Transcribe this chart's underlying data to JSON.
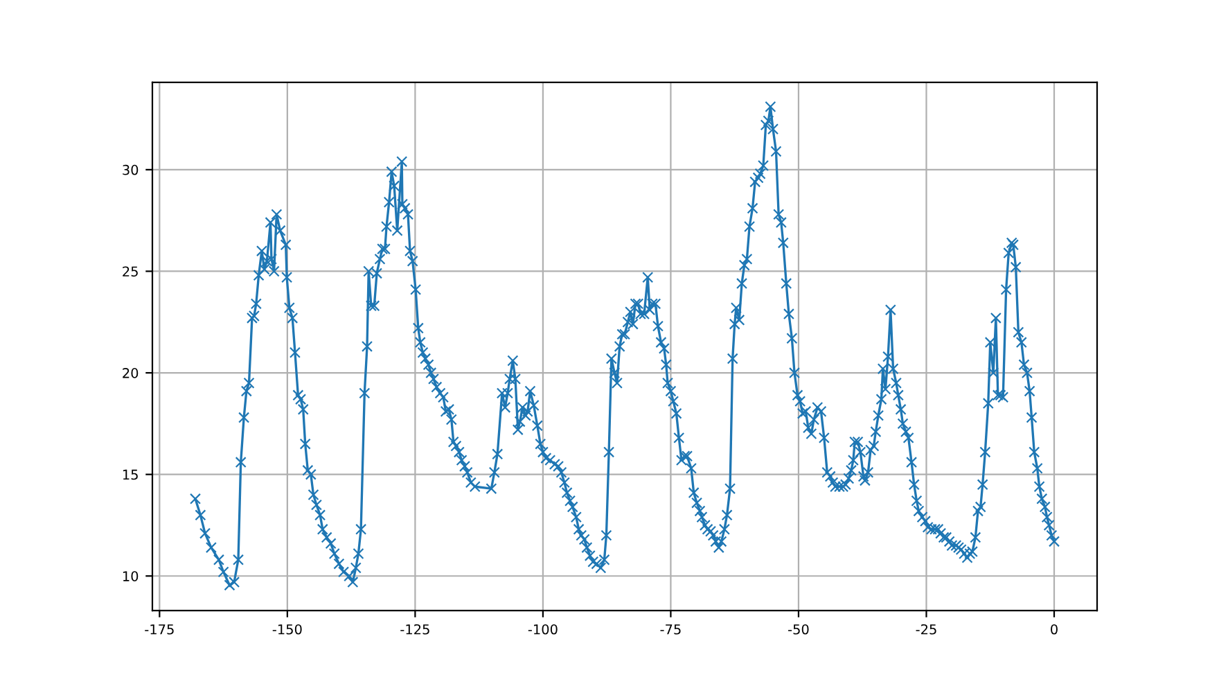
{
  "chart_data": {
    "type": "line",
    "x": [
      -168,
      -167.0,
      -166.1,
      -164.9,
      -163.4,
      -162.5,
      -161.3,
      -160.4,
      -159.6,
      -159.1,
      -158.5,
      -158.0,
      -157.5,
      -156.9,
      -156.5,
      -156.1,
      -155.6,
      -155.0,
      -154.5,
      -154.0,
      -153.3,
      -153.1,
      -152.6,
      -152.1,
      -151.4,
      -150.3,
      -150.1,
      -149.6,
      -149.0,
      -148.5,
      -147.9,
      -147.4,
      -146.9,
      -146.5,
      -146.0,
      -145.4,
      -144.9,
      -144.3,
      -143.6,
      -143.1,
      -142.3,
      -141.5,
      -140.8,
      -139.9,
      -139.0,
      -137.9,
      -137.2,
      -136.6,
      -136.1,
      -135.6,
      -134.9,
      -134.4,
      -134.1,
      -133.6,
      -133.0,
      -132.5,
      -131.9,
      -131.4,
      -130.9,
      -130.6,
      -130.1,
      -129.6,
      -129.1,
      -128.5,
      -127.6,
      -127.5,
      -127.0,
      -126.4,
      -126.0,
      -125.5,
      -124.9,
      -124.4,
      -124.0,
      -123.5,
      -123.0,
      -122.4,
      -121.9,
      -121.4,
      -120.8,
      -120.1,
      -119.5,
      -119.0,
      -118.4,
      -117.9,
      -117.5,
      -117.0,
      -116.4,
      -115.9,
      -115.3,
      -114.8,
      -114.1,
      -113.3,
      -110.1,
      -109.5,
      -108.9,
      -108.0,
      -107.4,
      -106.9,
      -106.5,
      -105.9,
      -105.4,
      -104.9,
      -104.5,
      -104.0,
      -103.4,
      -103.0,
      -102.5,
      -101.8,
      -101.1,
      -100.5,
      -100.0,
      -99.4,
      -98.6,
      -97.7,
      -97.0,
      -96.4,
      -95.8,
      -95.3,
      -94.7,
      -94.2,
      -93.5,
      -93.0,
      -92.5,
      -91.9,
      -91.4,
      -90.8,
      -90.2,
      -89.5,
      -88.7,
      -88.0,
      -87.6,
      -87.1,
      -86.6,
      -86.0,
      -85.5,
      -85.0,
      -84.5,
      -84.0,
      -83.4,
      -82.9,
      -82.4,
      -81.9,
      -81.4,
      -80.9,
      -80.2,
      -79.5,
      -79.1,
      -78.6,
      -78.0,
      -77.5,
      -76.9,
      -76.3,
      -75.9,
      -75.6,
      -75.0,
      -74.5,
      -73.9,
      -73.4,
      -72.9,
      -72.3,
      -71.8,
      -71.0,
      -70.5,
      -69.9,
      -69.3,
      -68.9,
      -68.3,
      -67.8,
      -67.2,
      -66.7,
      -66.2,
      -65.6,
      -65.1,
      -64.5,
      -64.0,
      -63.4,
      -62.9,
      -62.5,
      -62.2,
      -61.6,
      -61.1,
      -60.6,
      -60.1,
      -59.6,
      -59.0,
      -58.5,
      -57.9,
      -57.5,
      -56.9,
      -56.4,
      -55.9,
      -55.5,
      -55.0,
      -54.4,
      -53.9,
      -53.4,
      -53.0,
      -52.4,
      -51.9,
      -51.3,
      -50.8,
      -50.2,
      -49.7,
      -49.2,
      -48.6,
      -48.1,
      -47.5,
      -47.0,
      -46.3,
      -45.6,
      -45.0,
      -44.4,
      -43.8,
      -43.3,
      -42.8,
      -42.0,
      -41.3,
      -40.8,
      -40.2,
      -39.7,
      -39.3,
      -39.0,
      -38.4,
      -37.9,
      -37.3,
      -37.0,
      -36.4,
      -35.9,
      -35.3,
      -34.9,
      -34.4,
      -33.8,
      -33.5,
      -33.0,
      -32.5,
      -32.0,
      -31.5,
      -30.9,
      -30.5,
      -30.0,
      -29.6,
      -29.0,
      -28.5,
      -27.9,
      -27.4,
      -26.9,
      -26.5,
      -25.8,
      -25.2,
      -24.7,
      -24.0,
      -23.3,
      -22.7,
      -22.2,
      -21.6,
      -21.1,
      -20.5,
      -20.0,
      -19.2,
      -18.7,
      -18.2,
      -17.6,
      -17.0,
      -16.5,
      -16.0,
      -15.4,
      -14.9,
      -14.4,
      -14.0,
      -13.5,
      -12.9,
      -12.5,
      -11.9,
      -11.4,
      -11.0,
      -10.5,
      -10.0,
      -9.4,
      -8.9,
      -8.3,
      -8.0,
      -7.5,
      -7.0,
      -6.4,
      -5.9,
      -5.3,
      -4.8,
      -4.4,
      -3.9,
      -3.3,
      -2.9,
      -2.4,
      -1.8,
      -1.4,
      -1.0,
      -0.5,
      0
    ],
    "series": [
      {
        "color": "#1f77b4",
        "values": [
          13.8,
          13.0,
          12.1,
          11.4,
          10.8,
          10.2,
          9.55,
          9.7,
          10.8,
          15.6,
          17.8,
          19.1,
          19.5,
          22.7,
          22.8,
          23.4,
          24.8,
          26.0,
          25.1,
          25.5,
          27.4,
          25.6,
          25.0,
          27.8,
          27.0,
          26.3,
          24.7,
          23.2,
          22.7,
          21.0,
          18.9,
          18.7,
          18.2,
          16.5,
          15.2,
          15.0,
          14.0,
          13.5,
          13.0,
          12.3,
          11.9,
          11.6,
          11.1,
          10.6,
          10.2,
          10.0,
          9.7,
          10.4,
          11.1,
          12.3,
          19.0,
          21.3,
          25.0,
          23.3,
          23.3,
          24.9,
          25.6,
          26.1,
          26.1,
          27.2,
          28.4,
          29.9,
          29.2,
          27.0,
          30.4,
          28.3,
          28.1,
          27.8,
          26.0,
          25.5,
          24.1,
          22.2,
          21.5,
          21.0,
          20.7,
          20.4,
          20.0,
          19.7,
          19.3,
          19.0,
          18.8,
          18.1,
          18.2,
          17.7,
          16.6,
          16.4,
          16.1,
          15.7,
          15.4,
          15.1,
          14.6,
          14.4,
          14.3,
          15.1,
          16.0,
          19.0,
          18.3,
          19.0,
          19.7,
          20.6,
          19.7,
          17.2,
          17.6,
          18.3,
          17.9,
          18.1,
          19.1,
          18.4,
          17.4,
          16.5,
          16.1,
          15.8,
          15.7,
          15.5,
          15.4,
          15.1,
          14.6,
          14.1,
          13.7,
          13.4,
          12.9,
          12.3,
          12.0,
          11.8,
          11.4,
          11.0,
          10.7,
          10.6,
          10.4,
          10.8,
          12.0,
          16.1,
          20.7,
          20.0,
          19.5,
          21.3,
          21.9,
          21.9,
          22.5,
          23.0,
          22.4,
          23.4,
          23.4,
          22.9,
          22.9,
          24.7,
          23.1,
          23.4,
          23.4,
          22.3,
          21.5,
          21.2,
          20.4,
          19.5,
          19.1,
          18.6,
          18.0,
          16.8,
          15.7,
          15.9,
          15.9,
          15.3,
          14.1,
          13.6,
          13.2,
          12.9,
          12.5,
          12.3,
          12.2,
          12.0,
          11.7,
          11.4,
          11.7,
          12.3,
          13.0,
          14.3,
          20.7,
          22.4,
          23.2,
          22.6,
          24.4,
          25.3,
          25.6,
          27.2,
          28.1,
          29.4,
          29.6,
          29.8,
          30.2,
          32.2,
          32.4,
          33.1,
          32.0,
          30.9,
          27.8,
          27.4,
          26.4,
          24.4,
          22.9,
          21.7,
          20.0,
          18.9,
          18.6,
          18.0,
          18.1,
          17.3,
          17.0,
          17.7,
          18.3,
          18.1,
          16.8,
          15.1,
          14.9,
          14.6,
          14.4,
          14.4,
          14.4,
          14.5,
          14.8,
          15.2,
          15.7,
          16.6,
          16.6,
          16.1,
          14.9,
          14.7,
          15.1,
          16.2,
          16.4,
          17.1,
          17.9,
          18.7,
          20.2,
          19.2,
          20.8,
          23.1,
          20.2,
          19.5,
          18.9,
          18.2,
          17.5,
          17.1,
          16.8,
          15.6,
          14.5,
          13.7,
          13.2,
          12.9,
          12.7,
          12.4,
          12.3,
          12.3,
          12.3,
          12.1,
          11.9,
          11.9,
          11.7,
          11.5,
          11.5,
          11.4,
          11.3,
          11.1,
          10.9,
          11.1,
          11.2,
          11.9,
          13.2,
          13.4,
          14.5,
          16.1,
          18.5,
          21.5,
          20.0,
          22.7,
          18.9,
          18.9,
          18.8,
          24.1,
          25.9,
          26.4,
          26.3,
          25.2,
          22.0,
          21.5,
          20.4,
          20.0,
          19.1,
          17.8,
          16.1,
          15.3,
          14.4,
          13.8,
          13.4,
          12.9,
          12.5,
          12.0,
          11.7
        ]
      }
    ],
    "xlim": [
      -176.4,
      8.4
    ],
    "ylim": [
      8.3,
      34.3
    ],
    "xticks": [
      -175,
      -150,
      -125,
      -100,
      -75,
      -50,
      -25,
      0
    ],
    "yticks": [
      10,
      15,
      20,
      25,
      30
    ],
    "grid": true,
    "marker": "cross",
    "line_style": "solid"
  }
}
